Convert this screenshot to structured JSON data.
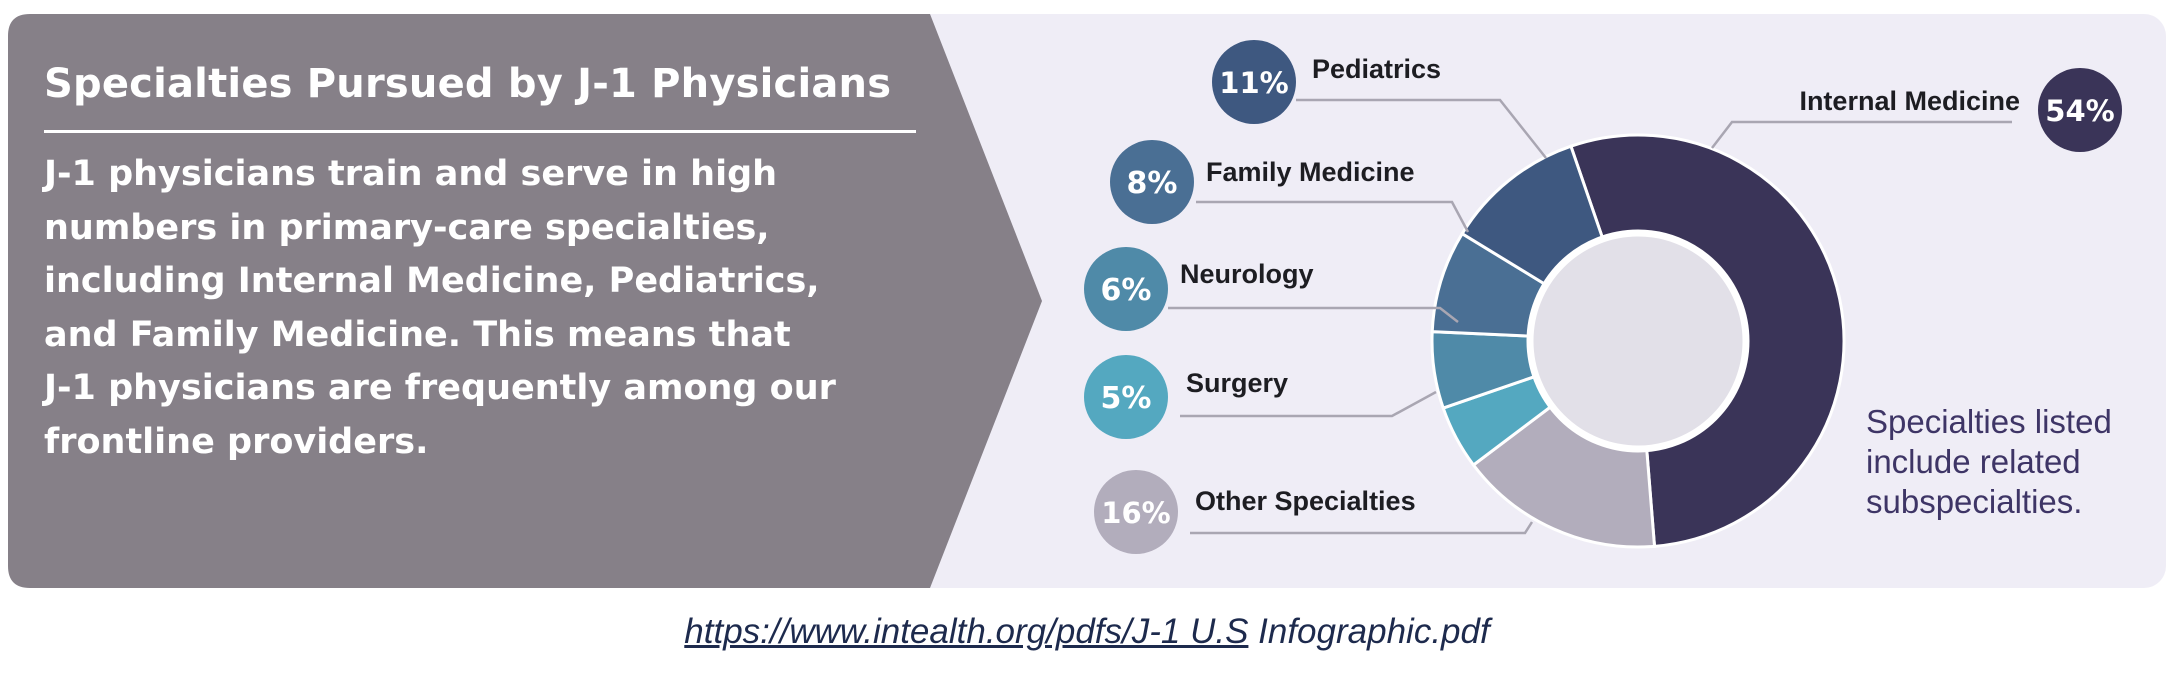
{
  "panel": {
    "title": "Specialties Pursued by J-1 Physicians",
    "body_lines": [
      "J-1 physicians train and serve in high",
      "numbers in primary-care specialties,",
      "including Internal Medicine, Pediatrics,",
      "and Family Medicine. This means that",
      "J-1 physicians are frequently among our",
      "frontline providers."
    ],
    "background_color": "#868088"
  },
  "note_lines": [
    "Specialties listed",
    "include related",
    "subspecialties."
  ],
  "source": {
    "link_text": "https://www.intealth.org/pdfs/J-1 U.S",
    "rest_text": " Infographic.pdf"
  },
  "chart_data": {
    "type": "pie",
    "variant": "donut",
    "title": "",
    "slices": [
      {
        "label": "Internal Medicine",
        "value": 54,
        "value_label": "54%",
        "color": "#3a3458"
      },
      {
        "label": "Other Specialties",
        "value": 16,
        "value_label": "16%",
        "color": "#b2adbc"
      },
      {
        "label": "Surgery",
        "value": 5,
        "value_label": "5%",
        "color": "#54a8c0"
      },
      {
        "label": "Neurology",
        "value": 6,
        "value_label": "6%",
        "color": "#4f8aa8"
      },
      {
        "label": "Family Medicine",
        "value": 8,
        "value_label": "8%",
        "color": "#4a6f94"
      },
      {
        "label": "Pediatrics",
        "value": 11,
        "value_label": "11%",
        "color": "#3e5880"
      }
    ],
    "legend": "callout labels around the ring"
  }
}
